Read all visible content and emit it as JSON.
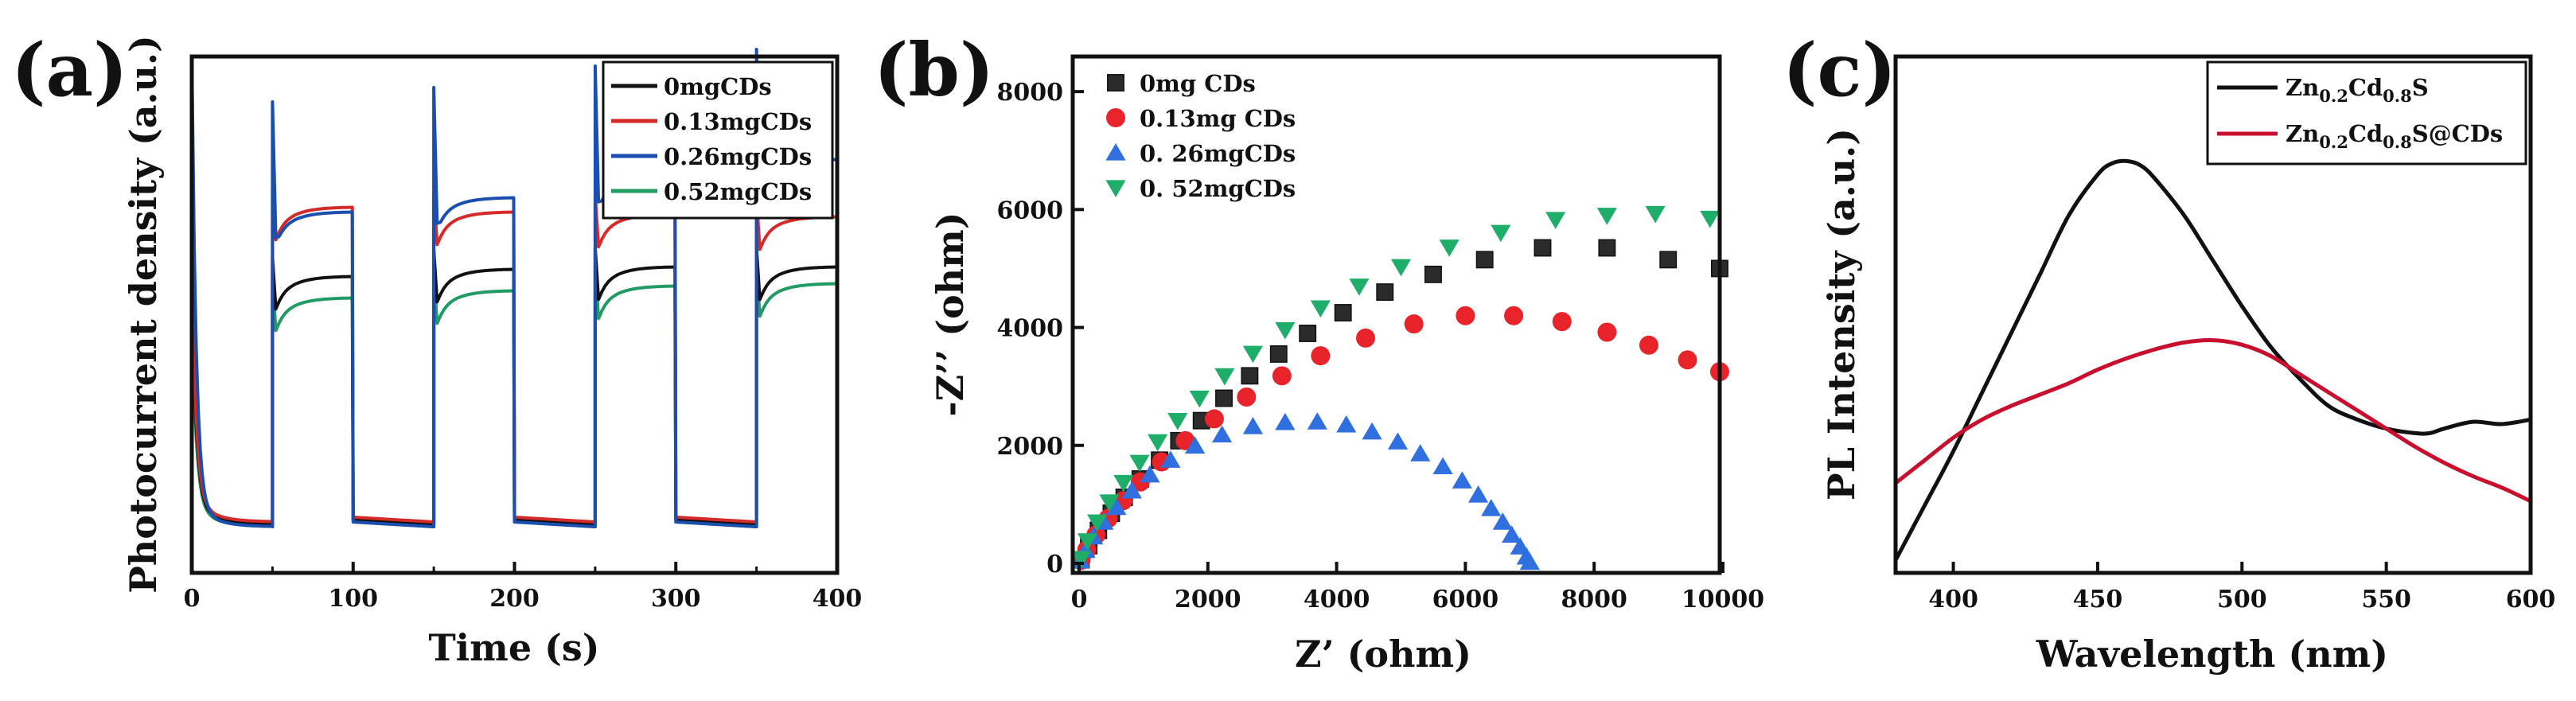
{
  "figure": {
    "panel_labels": [
      "(a)",
      "(b)",
      "(c)"
    ]
  },
  "chart_data": [
    {
      "type": "line",
      "panel": "(a)",
      "title": "",
      "xlabel": "Time (s)",
      "ylabel": "Photocurrent density (a.u.)",
      "xlim": [
        0,
        400
      ],
      "ylim": [
        0,
        1
      ],
      "x_ticks": [
        "0",
        "100",
        "200",
        "300",
        "400"
      ],
      "grid": false,
      "legend_position": "top-right",
      "light_on_intervals": [
        [
          50,
          100
        ],
        [
          150,
          200
        ],
        [
          250,
          300
        ],
        [
          350,
          400
        ]
      ],
      "series": [
        {
          "name": "0mgCDs",
          "color": "#111111",
          "initial_spike": 0.52,
          "dark_level": 0.035,
          "on_levels": [
            0.555,
            0.57,
            0.575,
            0.575
          ]
        },
        {
          "name": "0.13mgCDs",
          "color": "#d42a2a",
          "initial_spike": 0.56,
          "dark_level": 0.04,
          "on_levels": [
            0.7,
            0.69,
            0.685,
            0.68
          ]
        },
        {
          "name": "0.26mgCDs",
          "color": "#1a4fb0",
          "initial_spike": 1.0,
          "dark_level": 0.03,
          "on_levels": [
            0.69,
            0.72,
            0.765,
            0.8
          ]
        },
        {
          "name": "0.52mgCDs",
          "color": "#1f9b63",
          "initial_spike": 0.45,
          "dark_level": 0.03,
          "on_levels": [
            0.51,
            0.525,
            0.535,
            0.54
          ]
        }
      ]
    },
    {
      "type": "scatter",
      "panel": "(b)",
      "title": "",
      "xlabel": "Z’ (ohm)",
      "ylabel": "-Z’’ (ohm)",
      "xlim": [
        0,
        10000
      ],
      "ylim": [
        0,
        9000
      ],
      "x_ticks": [
        "0",
        "2000",
        "4000",
        "6000",
        "8000",
        "10000"
      ],
      "y_ticks": [
        "0",
        "2000",
        "4000",
        "6000",
        "8000"
      ],
      "grid": false,
      "legend_position": "top-left",
      "series": [
        {
          "name": "0mg CDs",
          "marker": "square",
          "color": "#2b2b2b",
          "x": [
            30,
            150,
            300,
            500,
            700,
            950,
            1250,
            1550,
            1900,
            2250,
            2650,
            3100,
            3550,
            4100,
            4750,
            5500,
            6300,
            7200,
            8200,
            9150,
            9950
          ],
          "y": [
            60,
            300,
            560,
            850,
            1120,
            1430,
            1750,
            2080,
            2420,
            2800,
            3180,
            3550,
            3900,
            4250,
            4600,
            4900,
            5150,
            5350,
            5350,
            5150,
            5000
          ]
        },
        {
          "name": "0.13mg CDs",
          "marker": "circle",
          "color": "#e8232a",
          "x": [
            30,
            120,
            260,
            450,
            680,
            950,
            1280,
            1650,
            2100,
            2600,
            3150,
            3750,
            4450,
            5200,
            6000,
            6750,
            7500,
            8200,
            8850,
            9450,
            9950
          ],
          "y": [
            50,
            230,
            480,
            760,
            1060,
            1380,
            1720,
            2080,
            2450,
            2820,
            3180,
            3520,
            3820,
            4060,
            4200,
            4200,
            4100,
            3920,
            3700,
            3450,
            3250
          ]
        },
        {
          "name": "0. 26mgCDs",
          "marker": "triangle-up",
          "color": "#2f6fe0",
          "x": [
            20,
            100,
            220,
            380,
            580,
            820,
            1100,
            1420,
            1800,
            2220,
            2700,
            3200,
            3700,
            4150,
            4550,
            4950,
            5300,
            5650,
            5950,
            6200,
            6400,
            6580,
            6720,
            6850,
            6950,
            7000
          ],
          "y": [
            40,
            220,
            450,
            700,
            950,
            1230,
            1500,
            1750,
            1990,
            2180,
            2320,
            2390,
            2400,
            2350,
            2230,
            2060,
            1860,
            1640,
            1400,
            1160,
            930,
            700,
            480,
            280,
            110,
            20
          ]
        },
        {
          "name": "0. 52mgCDs",
          "marker": "triangle-down",
          "color": "#1fae6a",
          "x": [
            30,
            130,
            280,
            470,
            690,
            940,
            1220,
            1530,
            1870,
            2260,
            2700,
            3200,
            3750,
            4350,
            5000,
            5750,
            6550,
            7400,
            8200,
            8950,
            9800
          ],
          "y": [
            80,
            380,
            700,
            1040,
            1370,
            1710,
            2060,
            2420,
            2800,
            3180,
            3560,
            3960,
            4330,
            4700,
            5030,
            5360,
            5610,
            5830,
            5900,
            5930,
            5850
          ]
        }
      ]
    },
    {
      "type": "line",
      "panel": "(c)",
      "title": "",
      "xlabel": "Wavelength (nm)",
      "ylabel": "PL Intensity (a.u.)",
      "xlim": [
        380,
        600
      ],
      "ylim": [
        0,
        1
      ],
      "x_ticks": [
        "400",
        "450",
        "500",
        "550",
        "600"
      ],
      "grid": false,
      "legend_position": "top-right",
      "series": [
        {
          "name": "Zn0.2Cd0.8S",
          "legend_parts": [
            "Zn",
            "0.2",
            "Cd",
            "0.8",
            "S"
          ],
          "color": "#111111",
          "x": [
            380,
            390,
            400,
            410,
            420,
            430,
            440,
            450,
            455,
            460,
            465,
            470,
            480,
            490,
            500,
            510,
            520,
            530,
            540,
            550,
            560,
            565,
            570,
            580,
            590,
            600
          ],
          "y": [
            0.0,
            0.12,
            0.24,
            0.37,
            0.5,
            0.63,
            0.76,
            0.85,
            0.875,
            0.88,
            0.87,
            0.84,
            0.76,
            0.66,
            0.56,
            0.47,
            0.4,
            0.34,
            0.31,
            0.29,
            0.28,
            0.28,
            0.29,
            0.305,
            0.3,
            0.31
          ]
        },
        {
          "name": "Zn0.2Cd0.8S@CDs",
          "legend_parts": [
            "Zn",
            "0.2",
            "Cd",
            "0.8",
            "S@CDs"
          ],
          "color": "#c8102e",
          "x": [
            380,
            390,
            400,
            410,
            420,
            430,
            440,
            450,
            460,
            470,
            480,
            490,
            500,
            510,
            520,
            530,
            540,
            550,
            560,
            570,
            580,
            590,
            600
          ],
          "y": [
            0.17,
            0.22,
            0.27,
            0.31,
            0.34,
            0.365,
            0.39,
            0.42,
            0.445,
            0.465,
            0.48,
            0.485,
            0.475,
            0.45,
            0.41,
            0.37,
            0.33,
            0.29,
            0.25,
            0.215,
            0.185,
            0.16,
            0.13
          ]
        }
      ]
    }
  ]
}
